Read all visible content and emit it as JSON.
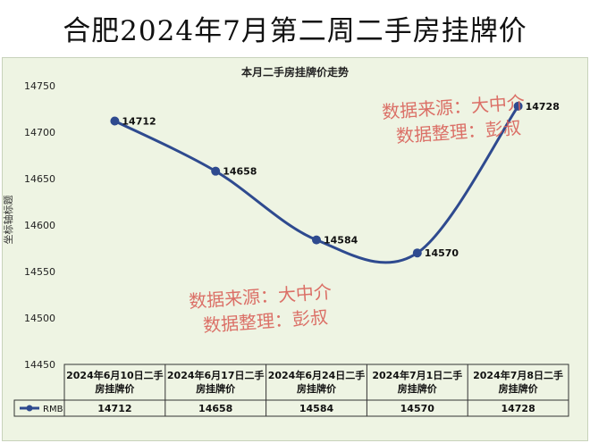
{
  "banner": {
    "title": "合肥2024年7月第二周二手房挂牌价"
  },
  "watermarks": [
    {
      "line1": "数据来源：大中介",
      "line2": "数据整理：彭叔"
    },
    {
      "line1": "数据来源：大中介",
      "line2": "数据整理：彭叔"
    }
  ],
  "colors": {
    "line": "#2e4a8f",
    "marker": "#2e4a8f",
    "background": "#eef4e3",
    "watermark": "#d9625a"
  },
  "chart_data": {
    "type": "line",
    "title": "本月二手房挂牌价走势",
    "ylabel": "坐标轴标题",
    "xlabel": "",
    "ylim": [
      14450,
      14750
    ],
    "yticks": [
      14450,
      14500,
      14550,
      14600,
      14650,
      14700,
      14750
    ],
    "categories": [
      "2024年6月10日二手房挂牌价",
      "2024年6月17日二手房挂牌价",
      "2024年6月24日二手房挂牌价",
      "2024年7月1日二手房挂牌价",
      "2024年7月8日二手房挂牌价"
    ],
    "series": [
      {
        "name": "RMB",
        "values": [
          14712,
          14658,
          14584,
          14570,
          14728
        ]
      }
    ],
    "grid": false,
    "legend": "data-table"
  }
}
